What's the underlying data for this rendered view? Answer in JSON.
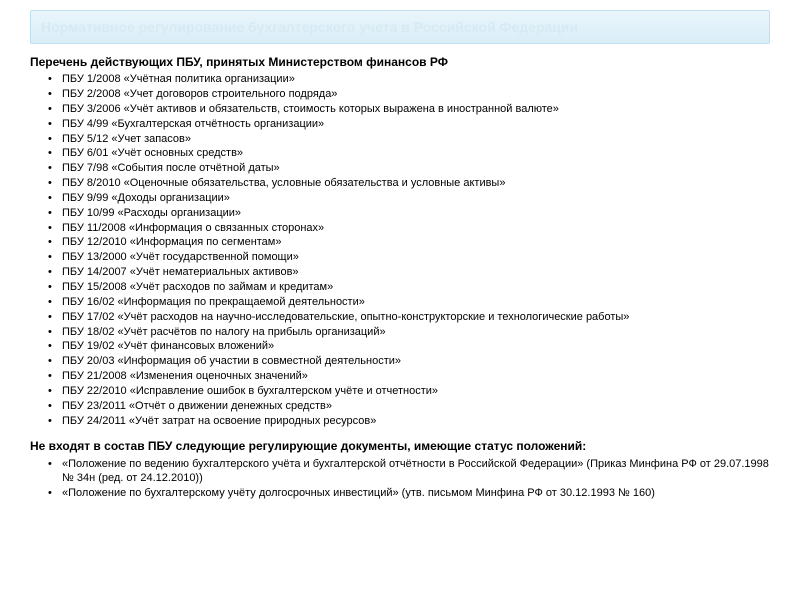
{
  "colors": {
    "header_bg_top": "#eaf5fb",
    "header_bg_bottom": "#d9eef8",
    "header_border": "#bfe0ef",
    "header_text": "#d7eaf4",
    "body_text": "#000000",
    "page_bg": "#ffffff"
  },
  "typography": {
    "base_family": "Arial",
    "base_size_pt": 8,
    "title_size_pt": 9,
    "header_size_pt": 11,
    "line_height": 1.35
  },
  "header": {
    "title": "Нормативное регулирование бухгалтерского учета в Российской Федерации"
  },
  "section1": {
    "title": "Перечень действующих ПБУ, принятых Министерством финансов РФ",
    "items": [
      "ПБУ 1/2008 «Учётная политика организации»",
      "ПБУ 2/2008 «Учет договоров строительного подряда»",
      "ПБУ 3/2006 «Учёт активов и обязательств, стоимость которых выражена в иностранной валюте»",
      "ПБУ 4/99 «Бухгалтерская отчётность организации»",
      "ПБУ 5/12 «Учет запасов»",
      "ПБУ 6/01 «Учёт основных средств»",
      "ПБУ 7/98 «События после отчётной даты»",
      "ПБУ 8/2010 «Оценочные обязательства, условные обязательства и условные активы»",
      "ПБУ 9/99 «Доходы организации»",
      "ПБУ 10/99 «Расходы организации»",
      "ПБУ 11/2008 «Информация о связанных сторонах»",
      "ПБУ 12/2010 «Информация по сегментам»",
      "ПБУ 13/2000 «Учёт государственной помощи»",
      "ПБУ 14/2007 «Учёт нематериальных активов»",
      "ПБУ 15/2008 «Учёт расходов по займам и кредитам»",
      "ПБУ 16/02 «Информация по прекращаемой деятельности»",
      "ПБУ 17/02 «Учёт расходов на научно-исследовательские, опытно-конструкторские и технологические работы»",
      "ПБУ 18/02 «Учёт расчётов по налогу на прибыль организаций»",
      "ПБУ 19/02 «Учёт финансовых вложений»",
      "ПБУ 20/03 «Информация об участии в совместной деятельности»",
      "ПБУ 21/2008 «Изменения оценочных значений»",
      "ПБУ 22/2010 «Исправление ошибок в бухгалтерском учёте и отчетности»",
      "ПБУ 23/2011 «Отчёт о движении денежных средств»",
      "ПБУ 24/2011 «Учёт затрат на освоение природных ресурсов»"
    ]
  },
  "section2": {
    "title": "Не входят в состав ПБУ следующие регулирующие документы, имеющие статус положений:",
    "items": [
      "«Положение по ведению бухгалтерского учёта и бухгалтерской отчётности в Российской Федерации» (Приказ Минфина РФ от 29.07.1998 № 34н (ред. от 24.12.2010))",
      "«Положение по бухгалтерскому учёту долгосрочных инвестиций» (утв. письмом Минфина РФ от 30.12.1993 № 160)"
    ]
  }
}
